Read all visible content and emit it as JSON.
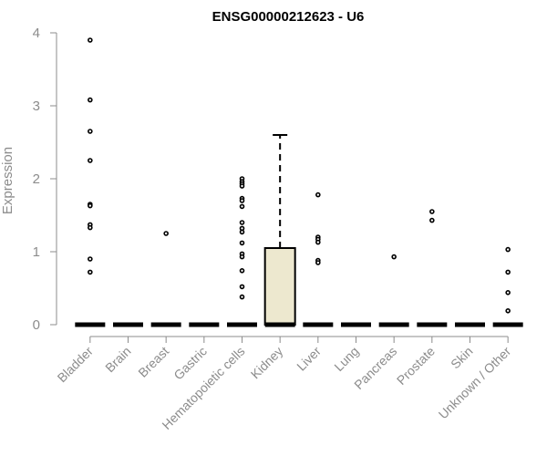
{
  "chart_data": {
    "type": "box",
    "title": "ENSG00000212623 - U6",
    "xlabel": "",
    "ylabel": "Expression",
    "ylim": [
      0,
      4
    ],
    "yticks": [
      0,
      1,
      2,
      3,
      4
    ],
    "grid": false,
    "legend": "none",
    "colors": {
      "box_fill": "#ede8cf",
      "stroke": "#000000",
      "axis": "#8c8c8c"
    },
    "categories": [
      "Bladder",
      "Brain",
      "Breast",
      "Gastric",
      "Hematopoietic cells",
      "Kidney",
      "Liver",
      "Lung",
      "Pancreas",
      "Prostate",
      "Skin",
      "Unknown / Other"
    ],
    "boxes": [
      {
        "category": "Bladder",
        "q1": 0,
        "median": 0,
        "q3": 0,
        "whisker_low": 0,
        "whisker_high": 0,
        "outliers": [
          3.9,
          3.08,
          2.65,
          2.25,
          1.65,
          1.63,
          1.37,
          1.33,
          0.9,
          0.72
        ]
      },
      {
        "category": "Brain",
        "q1": 0,
        "median": 0,
        "q3": 0,
        "whisker_low": 0,
        "whisker_high": 0,
        "outliers": []
      },
      {
        "category": "Breast",
        "q1": 0,
        "median": 0,
        "q3": 0,
        "whisker_low": 0,
        "whisker_high": 0,
        "outliers": [
          1.25
        ]
      },
      {
        "category": "Gastric",
        "q1": 0,
        "median": 0,
        "q3": 0,
        "whisker_low": 0,
        "whisker_high": 0,
        "outliers": []
      },
      {
        "category": "Hematopoietic cells",
        "q1": 0,
        "median": 0,
        "q3": 0,
        "whisker_low": 0,
        "whisker_high": 0,
        "outliers": [
          2.0,
          1.96,
          1.93,
          1.9,
          1.73,
          1.7,
          1.62,
          1.4,
          1.32,
          1.27,
          1.12,
          0.97,
          0.93,
          0.74,
          0.52,
          0.38
        ]
      },
      {
        "category": "Kidney",
        "q1": 0,
        "median": 0,
        "q3": 1.05,
        "whisker_low": 0,
        "whisker_high": 2.6,
        "outliers": []
      },
      {
        "category": "Liver",
        "q1": 0,
        "median": 0,
        "q3": 0,
        "whisker_low": 0,
        "whisker_high": 0,
        "outliers": [
          1.78,
          1.2,
          1.17,
          1.13,
          0.88,
          0.85
        ]
      },
      {
        "category": "Lung",
        "q1": 0,
        "median": 0,
        "q3": 0,
        "whisker_low": 0,
        "whisker_high": 0,
        "outliers": []
      },
      {
        "category": "Pancreas",
        "q1": 0,
        "median": 0,
        "q3": 0,
        "whisker_low": 0,
        "whisker_high": 0,
        "outliers": [
          0.93
        ]
      },
      {
        "category": "Prostate",
        "q1": 0,
        "median": 0,
        "q3": 0,
        "whisker_low": 0,
        "whisker_high": 0,
        "outliers": [
          1.55,
          1.43
        ]
      },
      {
        "category": "Skin",
        "q1": 0,
        "median": 0,
        "q3": 0,
        "whisker_low": 0,
        "whisker_high": 0,
        "outliers": []
      },
      {
        "category": "Unknown / Other",
        "q1": 0,
        "median": 0,
        "q3": 0,
        "whisker_low": 0,
        "whisker_high": 0,
        "outliers": [
          1.03,
          0.72,
          0.44,
          0.19
        ]
      }
    ]
  }
}
